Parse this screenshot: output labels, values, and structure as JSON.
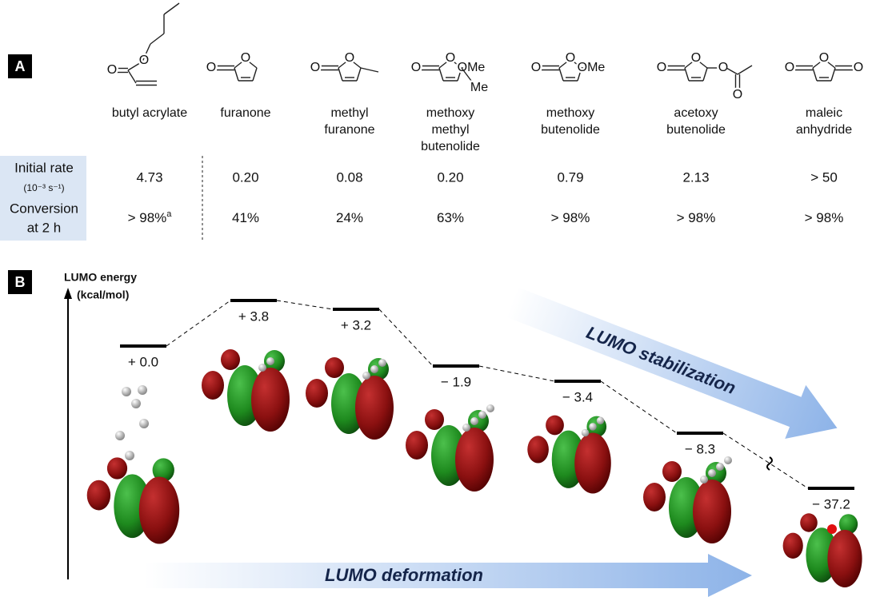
{
  "panel_a": {
    "label": "A",
    "compounds": [
      {
        "name": [
          "butyl acrylate"
        ],
        "atoms": [
          "O",
          "O"
        ],
        "rate": "4.73",
        "conversion": {
          "text": "> 98%",
          "note": "a"
        }
      },
      {
        "name": [
          "furanone"
        ],
        "atoms": [
          "O",
          "O"
        ],
        "rate": "0.20",
        "conversion": {
          "text": "41%"
        }
      },
      {
        "name": [
          "methyl",
          "furanone"
        ],
        "atoms": [
          "O",
          "O"
        ],
        "rate": "0.08",
        "conversion": {
          "text": "24%"
        }
      },
      {
        "name": [
          "methoxy",
          "methyl",
          "butenolide"
        ],
        "atoms": [
          "O",
          "O",
          "OMe",
          "Me"
        ],
        "rate": "0.20",
        "conversion": {
          "text": "63%"
        }
      },
      {
        "name": [
          "methoxy",
          "butenolide"
        ],
        "atoms": [
          "O",
          "O",
          "OMe"
        ],
        "rate": "0.79",
        "conversion": {
          "text": "> 98%"
        }
      },
      {
        "name": [
          "acetoxy",
          "butenolide"
        ],
        "atoms": [
          "O",
          "O",
          "O",
          "O"
        ],
        "rate": "2.13",
        "conversion": {
          "text": "> 98%"
        }
      },
      {
        "name": [
          "maleic",
          "anhydride"
        ],
        "atoms": [
          "O",
          "O",
          "O"
        ],
        "rate": "> 50",
        "conversion": {
          "text": "> 98%"
        }
      }
    ],
    "row_headers": {
      "rate": [
        "Initial rate",
        "(10⁻³ s⁻¹)"
      ],
      "conversion": [
        "Conversion",
        "at 2 h"
      ]
    }
  },
  "panel_b": {
    "label": "B",
    "axis_title": [
      "LUMO energy",
      "(kcal/mol)"
    ],
    "levels": [
      "+ 0.0",
      "+ 3.8",
      "+ 3.2",
      "− 1.9",
      "− 3.4",
      "− 8.3",
      "− 37.2"
    ],
    "arrows": {
      "stabilization": "LUMO stabilization",
      "deformation": "LUMO deformation"
    }
  }
}
